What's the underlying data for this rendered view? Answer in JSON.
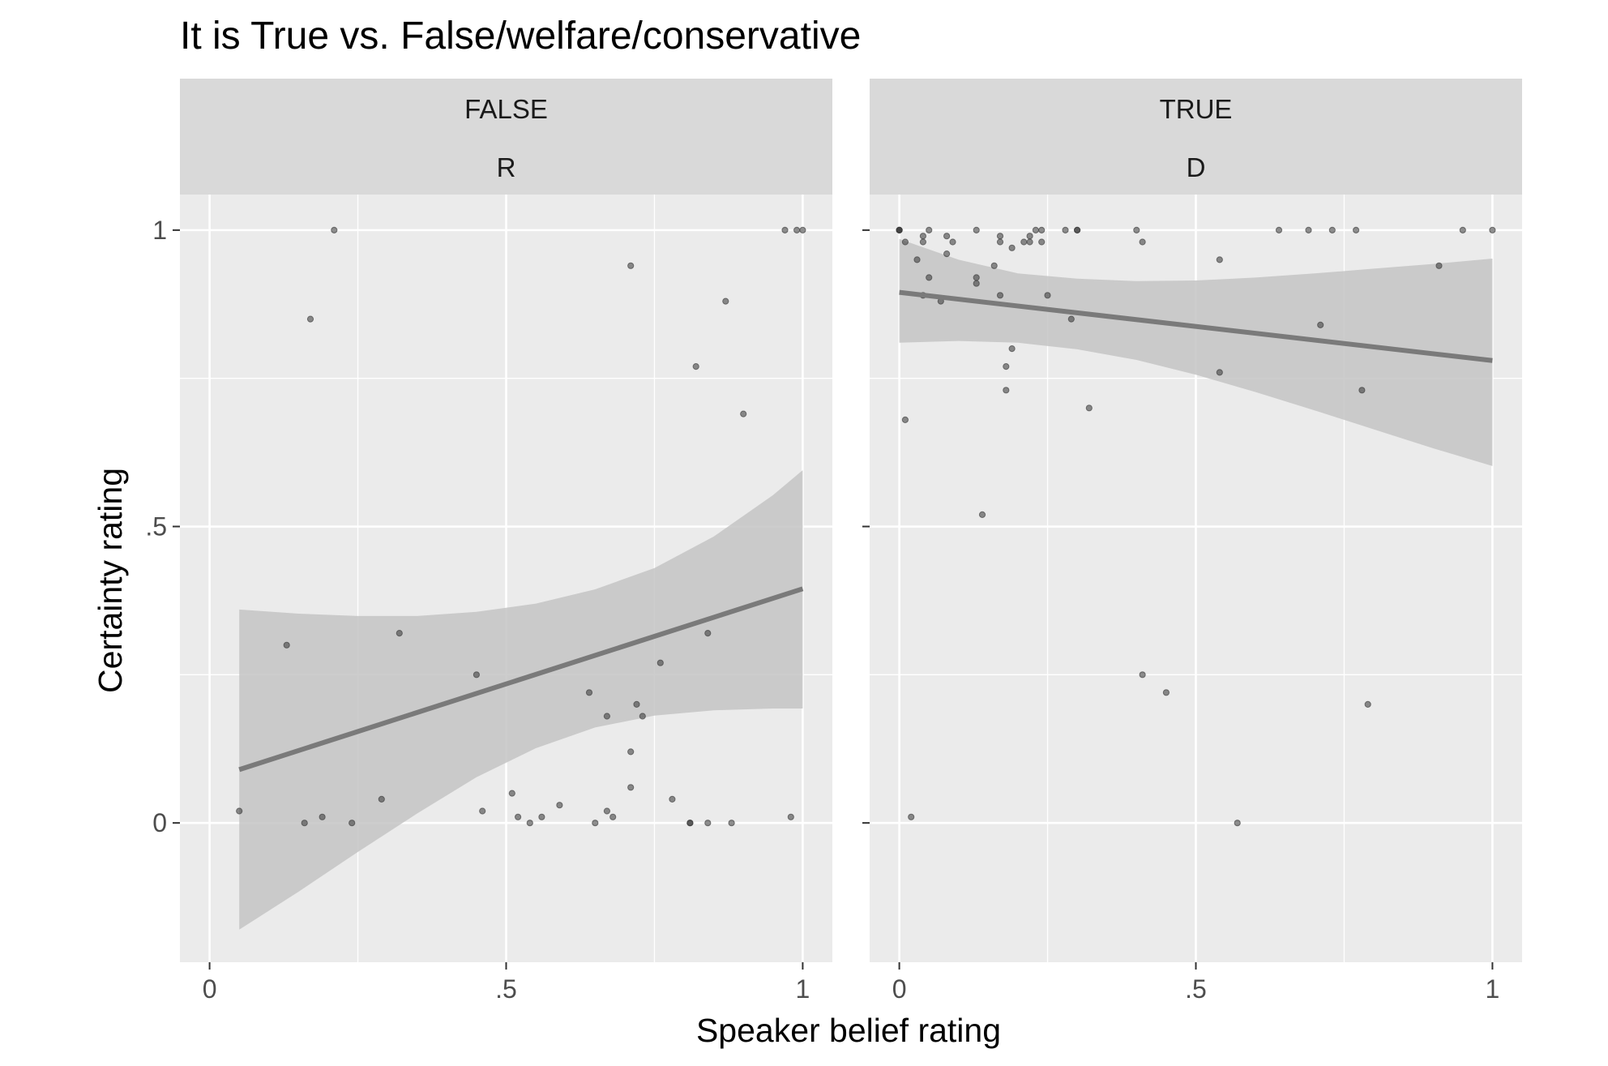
{
  "chart_data": {
    "type": "scatter",
    "title": "It is True vs. False/welfare/conservative",
    "xlabel": "Speaker belief rating",
    "ylabel": "Certainty rating",
    "x_ticks": [
      {
        "value": 0,
        "label": "0"
      },
      {
        "value": 0.5,
        "label": ".5"
      },
      {
        "value": 1,
        "label": "1"
      }
    ],
    "y_ticks": [
      {
        "value": 0,
        "label": "0"
      },
      {
        "value": 0.5,
        "label": ".5"
      },
      {
        "value": 1,
        "label": "1"
      }
    ],
    "xlim": [
      -0.05,
      1.05
    ],
    "ylim": [
      -0.235,
      1.06
    ],
    "grid": true,
    "colors": {
      "panel_bg": "#ebebeb",
      "strip_bg": "#d9d9d9",
      "grid": "#ffffff",
      "line": "#7a7a7a",
      "band": "#c4c4c4",
      "point": "#333333"
    },
    "panels": [
      {
        "strip": [
          "FALSE",
          "R"
        ],
        "fit": {
          "x": [
            0.05,
            1
          ],
          "y": [
            0.09,
            0.395
          ]
        },
        "band": {
          "x": [
            0.05,
            0.15,
            0.25,
            0.35,
            0.45,
            0.55,
            0.65,
            0.75,
            0.85,
            0.95,
            1
          ],
          "upper": [
            0.36,
            0.353,
            0.349,
            0.349,
            0.356,
            0.37,
            0.394,
            0.43,
            0.483,
            0.553,
            0.595
          ],
          "lower": [
            -0.18,
            -0.116,
            -0.049,
            0.016,
            0.077,
            0.126,
            0.161,
            0.181,
            0.19,
            0.193,
            0.193
          ]
        },
        "points": [
          [
            0.05,
            0.02
          ],
          [
            0.13,
            0.3
          ],
          [
            0.16,
            0.0
          ],
          [
            0.17,
            0.85
          ],
          [
            0.19,
            0.01
          ],
          [
            0.21,
            1.0
          ],
          [
            0.24,
            0.0
          ],
          [
            0.29,
            0.04
          ],
          [
            0.32,
            0.32
          ],
          [
            0.45,
            0.25
          ],
          [
            0.46,
            0.02
          ],
          [
            0.51,
            0.05
          ],
          [
            0.52,
            0.01
          ],
          [
            0.54,
            0.0
          ],
          [
            0.56,
            0.01
          ],
          [
            0.59,
            0.03
          ],
          [
            0.64,
            0.22
          ],
          [
            0.65,
            0.0
          ],
          [
            0.67,
            0.18
          ],
          [
            0.67,
            0.02
          ],
          [
            0.68,
            0.01
          ],
          [
            0.71,
            0.94
          ],
          [
            0.71,
            0.12
          ],
          [
            0.71,
            0.06
          ],
          [
            0.72,
            0.2
          ],
          [
            0.73,
            0.18
          ],
          [
            0.76,
            0.27
          ],
          [
            0.78,
            0.04
          ],
          [
            0.81,
            0.0
          ],
          [
            0.81,
            0.0
          ],
          [
            0.82,
            0.77
          ],
          [
            0.84,
            0.32
          ],
          [
            0.84,
            0.0
          ],
          [
            0.87,
            0.88
          ],
          [
            0.88,
            0.0
          ],
          [
            0.9,
            0.69
          ],
          [
            0.97,
            1.0
          ],
          [
            0.98,
            0.01
          ],
          [
            0.99,
            1.0
          ],
          [
            1.0,
            1.0
          ]
        ]
      },
      {
        "strip": [
          "TRUE",
          "D"
        ],
        "fit": {
          "x": [
            0,
            1
          ],
          "y": [
            0.895,
            0.78
          ]
        },
        "band": {
          "x": [
            0,
            0.1,
            0.2,
            0.3,
            0.4,
            0.5,
            0.6,
            0.7,
            0.8,
            0.9,
            1
          ],
          "upper": [
            0.985,
            0.95,
            0.927,
            0.918,
            0.914,
            0.915,
            0.92,
            0.927,
            0.935,
            0.943,
            0.952
          ],
          "lower": [
            0.81,
            0.813,
            0.81,
            0.799,
            0.781,
            0.756,
            0.727,
            0.696,
            0.664,
            0.632,
            0.602
          ]
        },
        "points": [
          [
            0.0,
            1.0
          ],
          [
            0.0,
            1.0
          ],
          [
            0.0,
            1.0
          ],
          [
            0.01,
            0.98
          ],
          [
            0.01,
            0.68
          ],
          [
            0.02,
            0.01
          ],
          [
            0.03,
            0.95
          ],
          [
            0.04,
            0.99
          ],
          [
            0.04,
            0.98
          ],
          [
            0.04,
            0.89
          ],
          [
            0.05,
            1.0
          ],
          [
            0.05,
            0.92
          ],
          [
            0.07,
            0.88
          ],
          [
            0.08,
            0.99
          ],
          [
            0.08,
            0.96
          ],
          [
            0.09,
            0.98
          ],
          [
            0.13,
            1.0
          ],
          [
            0.13,
            0.92
          ],
          [
            0.13,
            0.91
          ],
          [
            0.14,
            0.52
          ],
          [
            0.16,
            0.94
          ],
          [
            0.17,
            0.99
          ],
          [
            0.17,
            0.98
          ],
          [
            0.17,
            0.89
          ],
          [
            0.18,
            0.77
          ],
          [
            0.18,
            0.73
          ],
          [
            0.19,
            0.97
          ],
          [
            0.19,
            0.8
          ],
          [
            0.21,
            0.98
          ],
          [
            0.22,
            0.99
          ],
          [
            0.22,
            0.98
          ],
          [
            0.23,
            1.0
          ],
          [
            0.24,
            1.0
          ],
          [
            0.24,
            0.98
          ],
          [
            0.25,
            0.89
          ],
          [
            0.28,
            1.0
          ],
          [
            0.29,
            0.85
          ],
          [
            0.3,
            1.0
          ],
          [
            0.3,
            1.0
          ],
          [
            0.32,
            0.7
          ],
          [
            0.4,
            1.0
          ],
          [
            0.41,
            0.98
          ],
          [
            0.41,
            0.25
          ],
          [
            0.45,
            0.22
          ],
          [
            0.54,
            0.95
          ],
          [
            0.54,
            0.76
          ],
          [
            0.57,
            0.0
          ],
          [
            0.64,
            1.0
          ],
          [
            0.69,
            1.0
          ],
          [
            0.71,
            0.84
          ],
          [
            0.73,
            1.0
          ],
          [
            0.77,
            1.0
          ],
          [
            0.78,
            0.73
          ],
          [
            0.79,
            0.2
          ],
          [
            0.91,
            0.94
          ],
          [
            0.95,
            1.0
          ],
          [
            1.0,
            1.0
          ]
        ]
      }
    ]
  }
}
